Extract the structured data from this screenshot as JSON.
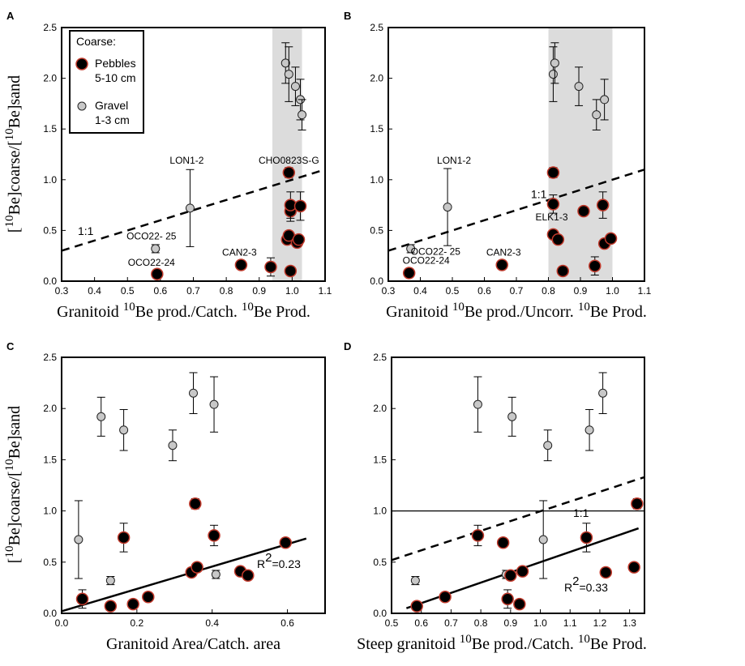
{
  "colors": {
    "pebble_fill": "#000000",
    "pebble_edge": "#c0392b",
    "gravel_fill": "#c8c8c8",
    "shade": "#dcdcdc"
  },
  "ylabel": {
    "open": "[",
    "sup1": "10",
    "mid": "Be]coarse/[",
    "sup2": "10",
    "end": "Be]sand"
  },
  "legend": {
    "title": "Coarse:",
    "pebbles_line1": "Pebbles",
    "pebbles_line2": "5-10 cm",
    "gravel_line1": "Gravel",
    "gravel_line2": "1-3 cm"
  },
  "chart_data": [
    {
      "panel": "A",
      "type": "scatter",
      "xlabel": {
        "a": "Granitoid ",
        "sup1": "10",
        "b": "Be prod./Catch. ",
        "sup2": "10",
        "c": "Be Prod."
      },
      "xlim": [
        0.3,
        1.1
      ],
      "ylim": [
        0,
        2.5
      ],
      "xticks": [
        "0.3",
        "0.4",
        "0.5",
        "0.6",
        "0.7",
        "0.8",
        "0.9",
        "1.0",
        "1.1"
      ],
      "yticks": [
        "0.0",
        "0.5",
        "1.0",
        "1.5",
        "2.0",
        "2.5"
      ],
      "shaded_x": [
        0.94,
        1.03
      ],
      "lines": [
        {
          "kind": "dashed",
          "x": [
            0.3,
            1.1
          ],
          "y": [
            0.3,
            1.1
          ],
          "label": "1:1"
        }
      ],
      "pebbles": [
        {
          "x": 0.59,
          "y": 0.07
        },
        {
          "x": 0.845,
          "y": 0.16
        },
        {
          "x": 0.935,
          "y": 0.14,
          "err": 0.09
        },
        {
          "x": 0.99,
          "y": 1.07,
          "err": 0.05
        },
        {
          "x": 0.985,
          "y": 0.41
        },
        {
          "x": 0.99,
          "y": 0.45
        },
        {
          "x": 0.995,
          "y": 0.69,
          "err": 0.1
        },
        {
          "x": 0.995,
          "y": 0.75,
          "err": 0.13
        },
        {
          "x": 0.995,
          "y": 0.1
        },
        {
          "x": 1.015,
          "y": 0.38
        },
        {
          "x": 1.02,
          "y": 0.41
        },
        {
          "x": 1.025,
          "y": 0.74,
          "err": 0.14
        }
      ],
      "gravel": [
        {
          "x": 0.585,
          "y": 0.32,
          "err": 0.04
        },
        {
          "x": 0.69,
          "y": 0.72,
          "err": 0.38
        },
        {
          "x": 0.98,
          "y": 2.15,
          "err": 0.2
        },
        {
          "x": 0.99,
          "y": 2.04,
          "err": 0.27
        },
        {
          "x": 1.01,
          "y": 1.92,
          "err": 0.19
        },
        {
          "x": 1.025,
          "y": 1.79,
          "err": 0.2
        },
        {
          "x": 1.03,
          "y": 1.64,
          "err": 0.15
        },
        {
          "x": 1.02,
          "y": 0.38
        }
      ],
      "labels": [
        {
          "text": "LON1-2",
          "x": 0.69,
          "y": 1.16
        },
        {
          "text": "CHO0823S-G",
          "x": 0.99,
          "y": 1.16
        },
        {
          "text": "OCO22- 25",
          "x": 0.585,
          "y": 0.41
        },
        {
          "text": "OCO22-24",
          "x": 0.585,
          "y": 0.15
        },
        {
          "text": "CAN2-3",
          "x": 0.84,
          "y": 0.25
        }
      ]
    },
    {
      "panel": "B",
      "type": "scatter",
      "xlabel": {
        "a": "Granitoid ",
        "sup1": "10",
        "b": "Be prod./Uncorr. ",
        "sup2": "10",
        "c": "Be Prod."
      },
      "xlim": [
        0.3,
        1.1
      ],
      "ylim": [
        0,
        2.5
      ],
      "xticks": [
        "0.3",
        "0.4",
        "0.5",
        "0.6",
        "0.7",
        "0.8",
        "0.9",
        "1.0",
        "1.1"
      ],
      "yticks": [
        "0.0",
        "0.5",
        "1.0",
        "1.5",
        "2.0",
        "2.5"
      ],
      "shaded_x": [
        0.8,
        1.0
      ],
      "lines": [
        {
          "kind": "dashed",
          "x": [
            0.3,
            1.1
          ],
          "y": [
            0.3,
            1.1
          ],
          "label": "1:1"
        }
      ],
      "pebbles": [
        {
          "x": 0.365,
          "y": 0.08
        },
        {
          "x": 0.655,
          "y": 0.16
        },
        {
          "x": 0.815,
          "y": 1.07,
          "err": 0.05
        },
        {
          "x": 0.815,
          "y": 0.76,
          "err": 0.09
        },
        {
          "x": 0.815,
          "y": 0.46
        },
        {
          "x": 0.83,
          "y": 0.41
        },
        {
          "x": 0.845,
          "y": 0.1
        },
        {
          "x": 0.91,
          "y": 0.69
        },
        {
          "x": 0.945,
          "y": 0.15,
          "err": 0.09
        },
        {
          "x": 0.97,
          "y": 0.75,
          "err": 0.13
        },
        {
          "x": 0.975,
          "y": 0.37
        },
        {
          "x": 0.995,
          "y": 0.42
        }
      ],
      "gravel": [
        {
          "x": 0.37,
          "y": 0.32,
          "err": 0.04
        },
        {
          "x": 0.485,
          "y": 0.73,
          "err": 0.38
        },
        {
          "x": 0.815,
          "y": 2.04,
          "err": 0.27
        },
        {
          "x": 0.82,
          "y": 2.15,
          "err": 0.2
        },
        {
          "x": 0.895,
          "y": 1.92,
          "err": 0.19
        },
        {
          "x": 0.95,
          "y": 1.64,
          "err": 0.15
        },
        {
          "x": 0.975,
          "y": 1.79,
          "err": 0.2
        },
        {
          "x": 0.985,
          "y": 0.39
        }
      ],
      "labels": [
        {
          "text": "LON1-2",
          "x": 0.485,
          "y": 1.16
        },
        {
          "text": "ELK1-3",
          "x": 0.8,
          "y": 0.6
        },
        {
          "text": "OCO22- 25",
          "x": 0.375,
          "y": 0.26
        },
        {
          "text": "OCO22-24",
          "x": 0.37,
          "y": 0.17
        },
        {
          "text": "CAN2-3",
          "x": 0.655,
          "y": 0.25
        },
        {
          "text": "1:1",
          "x": 0.77,
          "y": 0.82
        }
      ]
    },
    {
      "panel": "C",
      "type": "scatter",
      "xlabel": {
        "a": "Granitoid Area/Catch. area",
        "sup1": "",
        "b": "",
        "sup2": "",
        "c": ""
      },
      "xlim": [
        0.0,
        0.7
      ],
      "ylim": [
        0,
        2.5
      ],
      "xticks": [
        "0.0",
        "0.2",
        "0.4",
        "0.6"
      ],
      "yticks": [
        "0.0",
        "0.5",
        "1.0",
        "1.5",
        "2.0",
        "2.5"
      ],
      "lines": [
        {
          "kind": "solid",
          "x": [
            0.0,
            0.65
          ],
          "y": [
            0.02,
            0.73
          ],
          "label": "R^2=0.23"
        }
      ],
      "pebbles": [
        {
          "x": 0.055,
          "y": 0.14,
          "err": 0.09
        },
        {
          "x": 0.13,
          "y": 0.07
        },
        {
          "x": 0.165,
          "y": 0.74,
          "err": 0.14
        },
        {
          "x": 0.19,
          "y": 0.09
        },
        {
          "x": 0.23,
          "y": 0.16
        },
        {
          "x": 0.345,
          "y": 0.4
        },
        {
          "x": 0.355,
          "y": 1.07,
          "err": 0.05
        },
        {
          "x": 0.36,
          "y": 0.45
        },
        {
          "x": 0.405,
          "y": 0.76,
          "err": 0.1
        },
        {
          "x": 0.475,
          "y": 0.41
        },
        {
          "x": 0.495,
          "y": 0.37
        },
        {
          "x": 0.595,
          "y": 0.69
        }
      ],
      "gravel": [
        {
          "x": 0.045,
          "y": 0.72,
          "err": 0.38
        },
        {
          "x": 0.13,
          "y": 0.32,
          "err": 0.04
        },
        {
          "x": 0.105,
          "y": 1.92,
          "err": 0.19
        },
        {
          "x": 0.165,
          "y": 1.79,
          "err": 0.2
        },
        {
          "x": 0.295,
          "y": 1.64,
          "err": 0.15
        },
        {
          "x": 0.35,
          "y": 2.15,
          "err": 0.2
        },
        {
          "x": 0.405,
          "y": 2.04,
          "err": 0.27
        },
        {
          "x": 0.41,
          "y": 0.38,
          "err": 0.04
        }
      ],
      "labels": []
    },
    {
      "panel": "D",
      "type": "scatter",
      "xlabel": {
        "a": "Steep granitoid ",
        "sup1": "10",
        "b": "Be prod./Catch. ",
        "sup2": "10",
        "c": "Be Prod."
      },
      "xlim": [
        0.5,
        1.35
      ],
      "ylim": [
        0,
        2.5
      ],
      "xticks": [
        "0.5",
        "0.6",
        "0.7",
        "0.8",
        "0.9",
        "1.0",
        "1.1",
        "1.2",
        "1.3"
      ],
      "yticks": [
        "0.0",
        "0.5",
        "1.0",
        "1.5",
        "2.0",
        "2.5"
      ],
      "lines": [
        {
          "kind": "thin",
          "x": [
            0.5,
            1.35
          ],
          "y": [
            1.0,
            1.0
          ],
          "label": ""
        },
        {
          "kind": "dashed",
          "x": [
            0.5,
            1.35
          ],
          "y": [
            0.52,
            1.33
          ],
          "label": "1:1"
        },
        {
          "kind": "solid",
          "x": [
            0.55,
            1.33
          ],
          "y": [
            0.05,
            0.83
          ],
          "label": "R^2=0.33"
        }
      ],
      "pebbles": [
        {
          "x": 0.585,
          "y": 0.07
        },
        {
          "x": 0.68,
          "y": 0.16
        },
        {
          "x": 0.79,
          "y": 0.76,
          "err": 0.1
        },
        {
          "x": 0.875,
          "y": 0.69
        },
        {
          "x": 0.89,
          "y": 0.14,
          "err": 0.09
        },
        {
          "x": 0.9,
          "y": 0.37
        },
        {
          "x": 0.93,
          "y": 0.09
        },
        {
          "x": 0.94,
          "y": 0.41
        },
        {
          "x": 1.155,
          "y": 0.74,
          "err": 0.14
        },
        {
          "x": 1.22,
          "y": 0.4
        },
        {
          "x": 1.315,
          "y": 0.45
        },
        {
          "x": 1.325,
          "y": 1.07,
          "err": 0.05
        }
      ],
      "gravel": [
        {
          "x": 0.58,
          "y": 0.32,
          "err": 0.04
        },
        {
          "x": 0.79,
          "y": 2.04,
          "err": 0.27
        },
        {
          "x": 0.885,
          "y": 0.38,
          "err": 0.04
        },
        {
          "x": 0.905,
          "y": 1.92,
          "err": 0.19
        },
        {
          "x": 1.01,
          "y": 0.72,
          "err": 0.38
        },
        {
          "x": 1.025,
          "y": 1.64,
          "err": 0.15
        },
        {
          "x": 1.165,
          "y": 1.79,
          "err": 0.2
        },
        {
          "x": 1.21,
          "y": 2.15,
          "err": 0.2
        }
      ],
      "labels": []
    }
  ]
}
